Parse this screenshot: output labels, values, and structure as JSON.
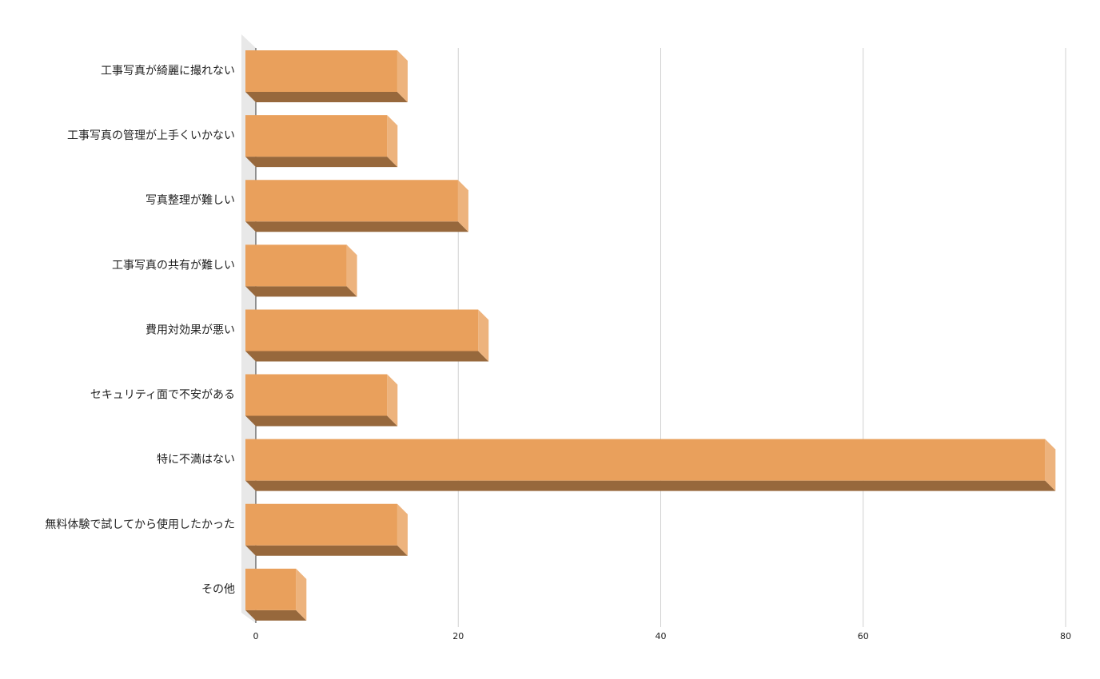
{
  "chart_data": {
    "type": "bar3d-horizontal",
    "categories": [
      "工事写真が綺麗に撮れない",
      "工事写真の管理が上手くいかない",
      "写真整理が難しい",
      "工事写真の共有が難しい",
      "費用対効果が悪い",
      "セキュリティ面で不安がある",
      "特に不満はない",
      "無料体験で試してから使用したかった",
      "その他"
    ],
    "values": [
      15,
      14,
      21,
      10,
      23,
      14,
      79,
      15,
      5
    ],
    "color": "#e9a05c",
    "xlim": [
      0,
      80
    ],
    "xticks": [
      0,
      20,
      40,
      60,
      80
    ],
    "grid": true
  }
}
